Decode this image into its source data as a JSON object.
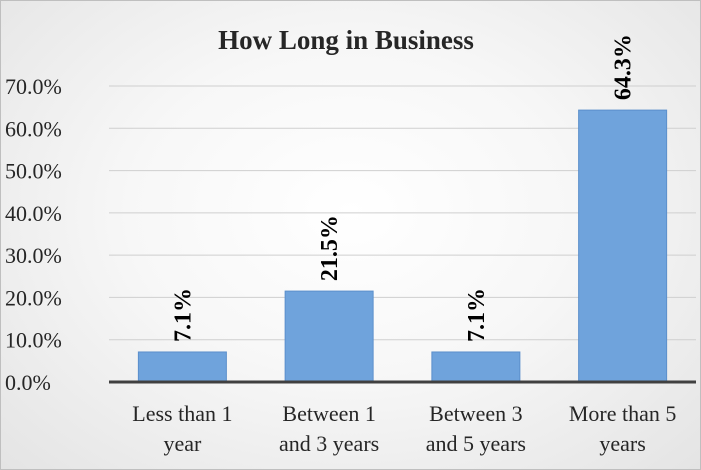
{
  "chart_data": {
    "type": "bar",
    "title": "How Long in Business",
    "categories": [
      [
        "Less than 1",
        "year"
      ],
      [
        "Between 1",
        "and 3 years"
      ],
      [
        "Between 3",
        "and 5 years"
      ],
      [
        "More than 5",
        "years"
      ]
    ],
    "values": [
      7.1,
      21.5,
      7.1,
      64.3
    ],
    "data_labels": [
      "7.1%",
      "21.5%",
      "7.1%",
      "64.3%"
    ],
    "y_ticks": [
      "0.0%",
      "10.0%",
      "20.0%",
      "30.0%",
      "40.0%",
      "50.0%",
      "60.0%",
      "70.0%"
    ],
    "ylim": [
      0,
      70
    ],
    "grid": true,
    "legend": "none",
    "bar_color": "#6fa3dc",
    "bar_border_color": "#5b8fcb"
  }
}
